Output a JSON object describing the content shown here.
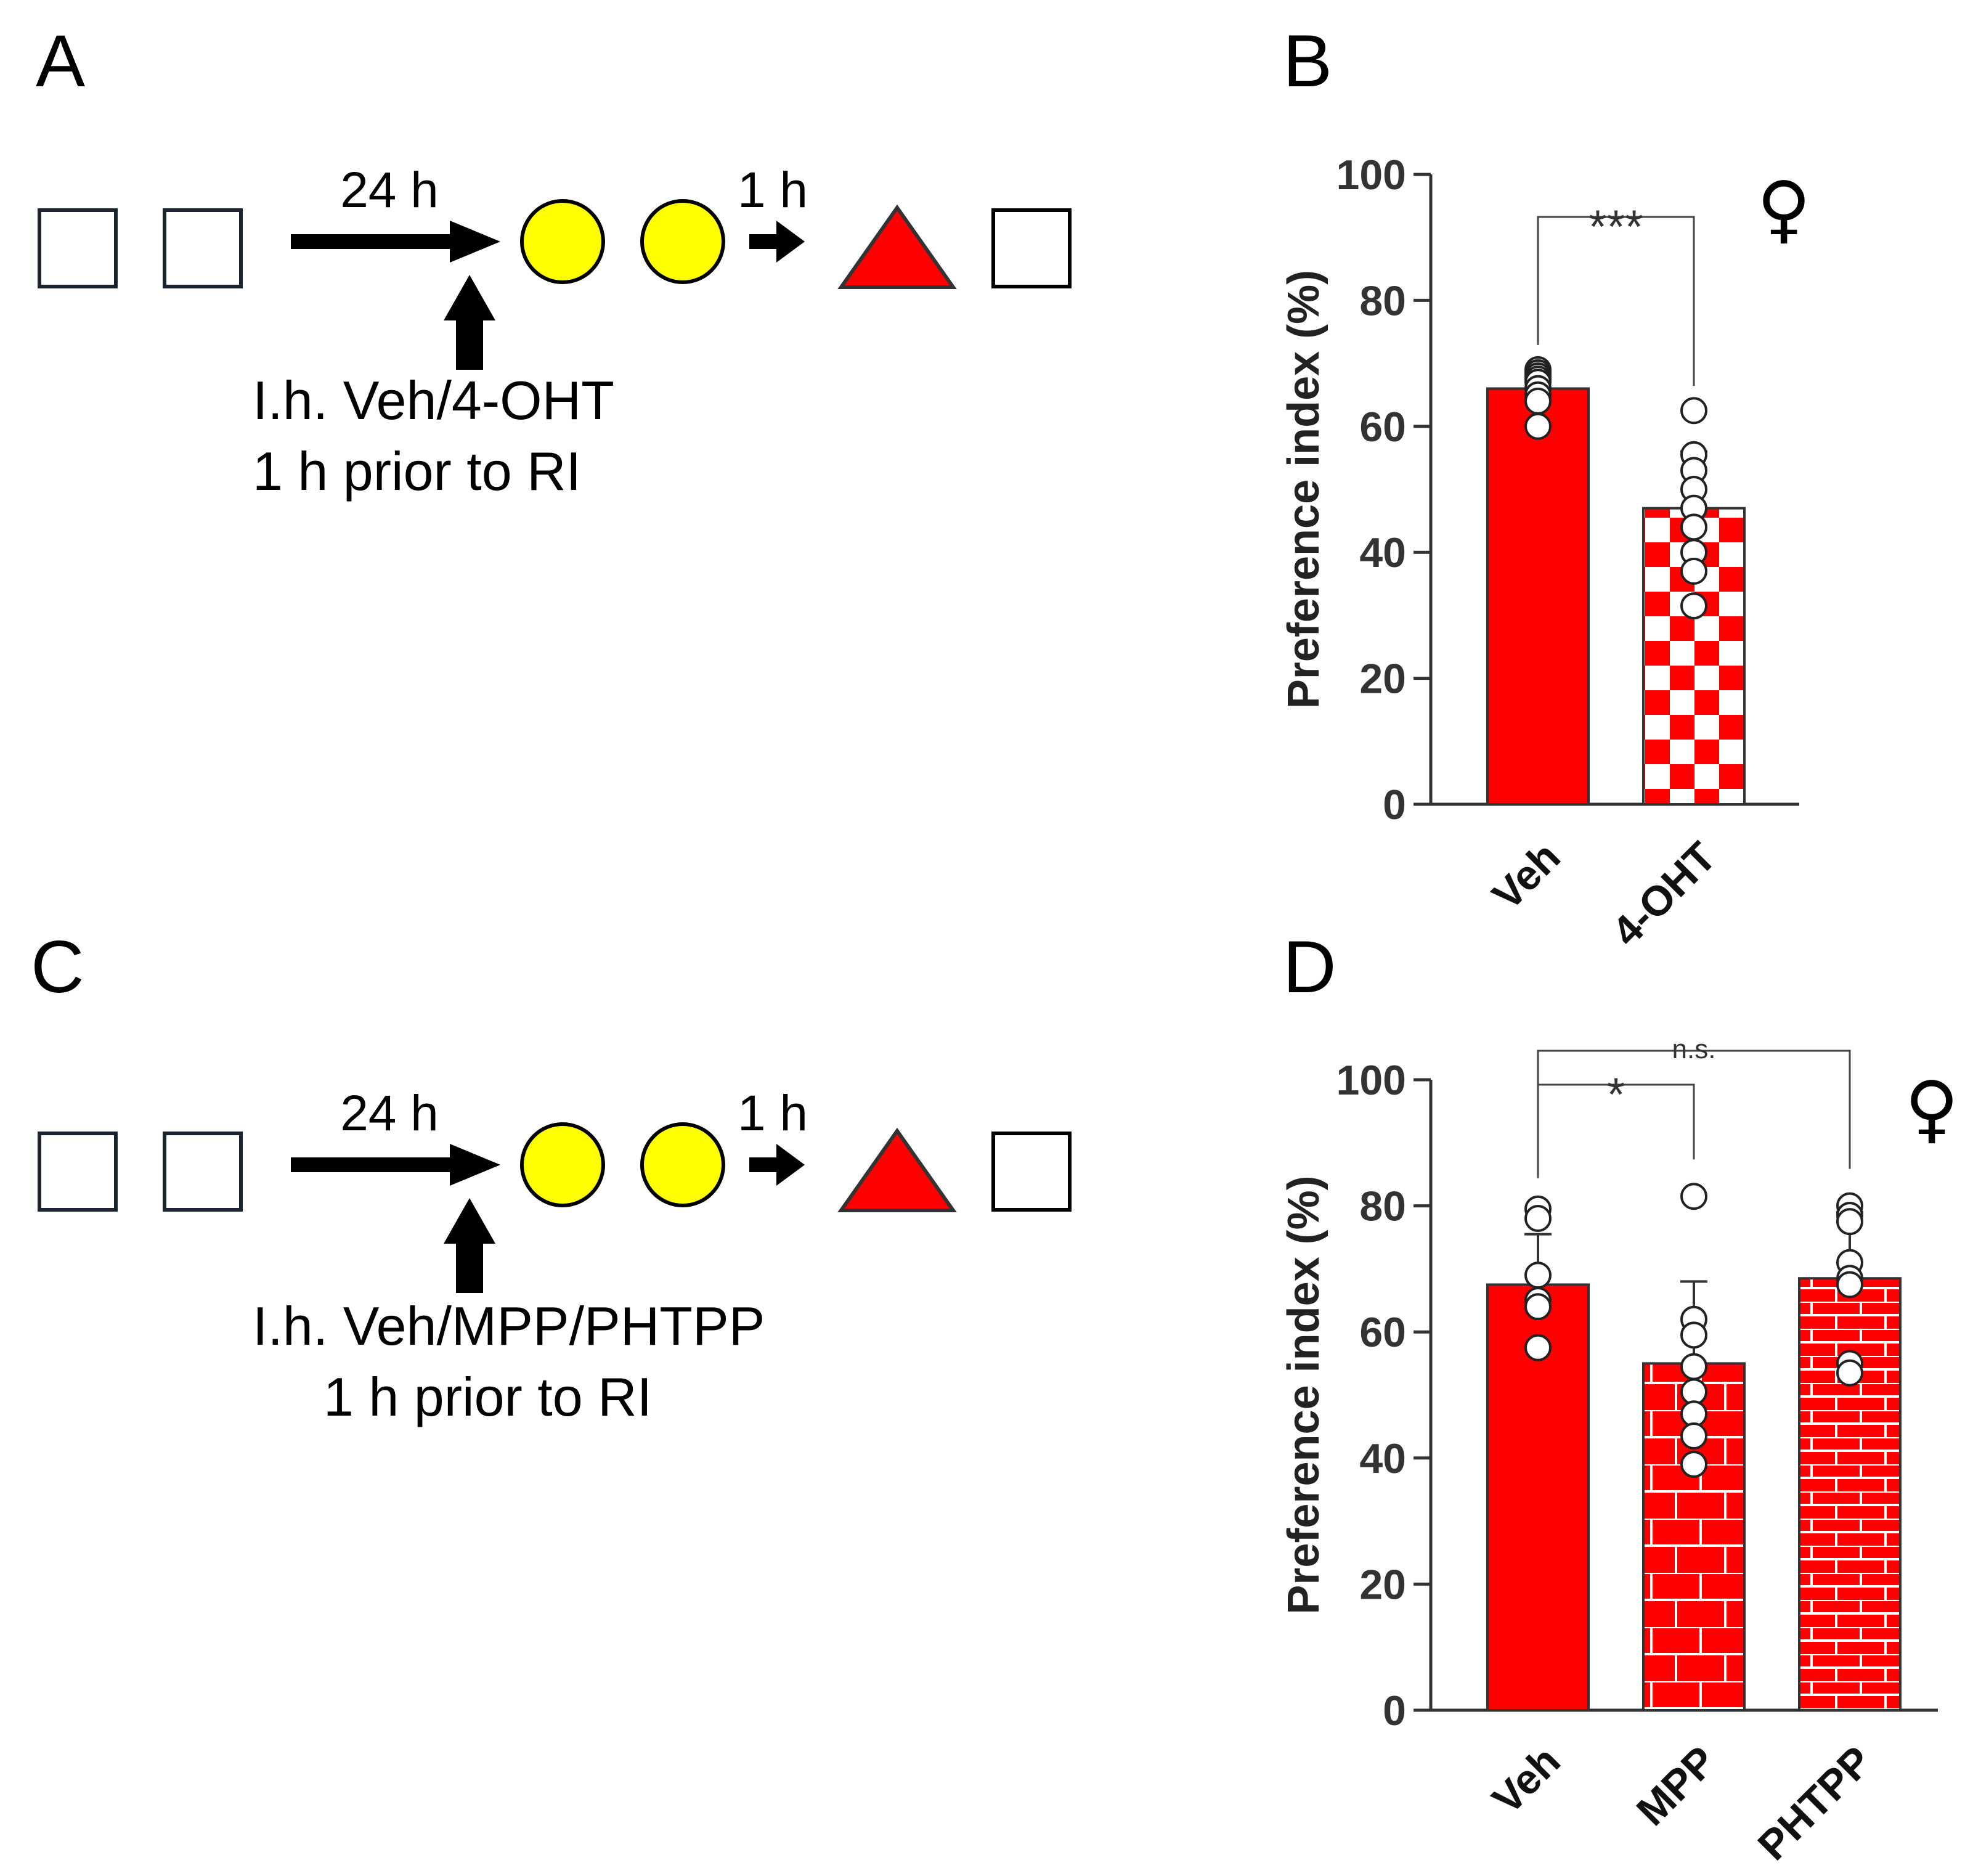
{
  "panels": {
    "A": {
      "letter": "A",
      "arrow1_label": "24 h",
      "arrow2_label": "1 h",
      "injection_line1": "I.h. Veh/4-OHT",
      "injection_line2": "1 h prior to RI"
    },
    "C": {
      "letter": "C",
      "arrow1_label": "24 h",
      "arrow2_label": "1 h",
      "injection_line1": "I.h. Veh/MPP/PHTPP",
      "injection_line2": "1 h prior to RI"
    },
    "B": {
      "letter": "B",
      "sex_symbol": "♀"
    },
    "D": {
      "letter": "D",
      "sex_symbol": "♀"
    }
  },
  "colors": {
    "red": "#ff0000",
    "yellow": "#ffff00",
    "square_stroke": "#1a2430",
    "bracket": "#444444"
  },
  "chart_data": [
    {
      "panel": "B",
      "type": "bar",
      "ylabel": "Preference index (%)",
      "ylim": [
        0,
        100
      ],
      "yticks": [
        0,
        20,
        40,
        60,
        80,
        100
      ],
      "categories": [
        "Veh",
        "4-OHT"
      ],
      "values": [
        66,
        47
      ],
      "errors": [
        2.5,
        9
      ],
      "patterns": [
        "solid",
        "checker"
      ],
      "points": [
        [
          69,
          68.5,
          68,
          67.5,
          67,
          66,
          65,
          64,
          60
        ],
        [
          62.5,
          55.5,
          53,
          50,
          47,
          44,
          40,
          37,
          31.5
        ]
      ],
      "significance": [
        {
          "from": 0,
          "to": 1,
          "label": "***"
        }
      ]
    },
    {
      "panel": "D",
      "type": "bar",
      "ylabel": "Preference index (%)",
      "ylim": [
        0,
        100
      ],
      "yticks": [
        0,
        20,
        40,
        60,
        80,
        100
      ],
      "categories": [
        "Veh",
        "MPP",
        "PHTPP"
      ],
      "values": [
        67.5,
        55,
        68.5
      ],
      "errors": [
        8,
        13,
        10.5
      ],
      "patterns": [
        "solid",
        "brick-white",
        "brick-red"
      ],
      "points": [
        [
          79.5,
          78,
          69,
          65,
          64,
          57.5
        ],
        [
          81.5,
          62,
          59.5,
          54.5,
          50.5,
          47,
          43.5,
          39
        ],
        [
          80,
          78.5,
          77.5,
          71,
          68.5,
          67.5,
          55,
          53.5
        ]
      ],
      "significance": [
        {
          "from": 0,
          "to": 1,
          "label": "*"
        },
        {
          "from": 0,
          "to": 2,
          "label": "n.s."
        }
      ]
    }
  ]
}
